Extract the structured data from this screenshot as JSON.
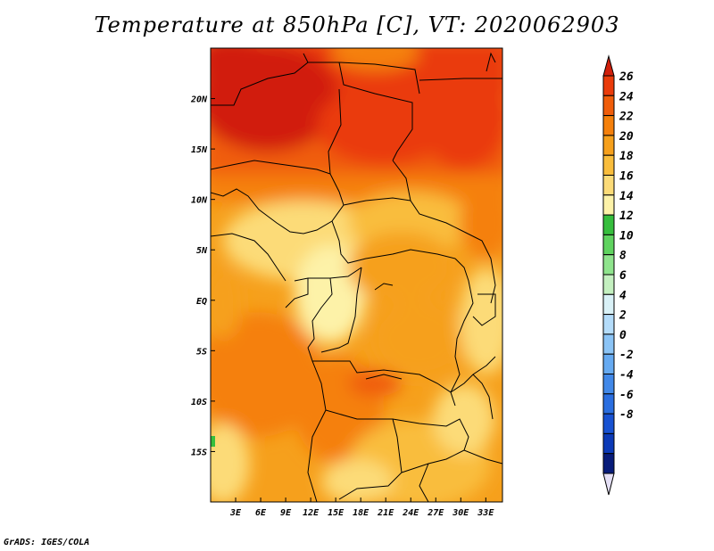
{
  "title": "Temperature at 850hPa [C], VT: 2020062903",
  "credit": "GrADS: IGES/COLA",
  "map": {
    "lon_range": [
      0,
      35
    ],
    "lat_range": [
      -20,
      25
    ],
    "lon_ticks": [
      "3E",
      "6E",
      "9E",
      "12E",
      "15E",
      "18E",
      "21E",
      "24E",
      "27E",
      "30E",
      "33E"
    ],
    "lat_ticks": [
      "20N",
      "15N",
      "10N",
      "5N",
      "EQ",
      "5S",
      "10S",
      "15S"
    ]
  },
  "colorbar": {
    "labels": [
      "26",
      "24",
      "22",
      "20",
      "18",
      "16",
      "14",
      "12",
      "10",
      "8",
      "6",
      "4",
      "2",
      "0",
      "-2",
      "-4",
      "-6",
      "-8"
    ],
    "colors": [
      "#d11f0a",
      "#ea3b0a",
      "#f05d0a",
      "#f5800b",
      "#f6a01c",
      "#f9bd3c",
      "#fcdb78",
      "#fdf2a8",
      "#36be3d",
      "#5fd35f",
      "#8fe48d",
      "#c4f0c0",
      "#d9f1f7",
      "#b4dcfa",
      "#8bc4f6",
      "#66aaf1",
      "#4188e8",
      "#2a6ee0",
      "#1852d2",
      "#0c3ab7",
      "#081c7a",
      "#e5e0f6"
    ]
  }
}
